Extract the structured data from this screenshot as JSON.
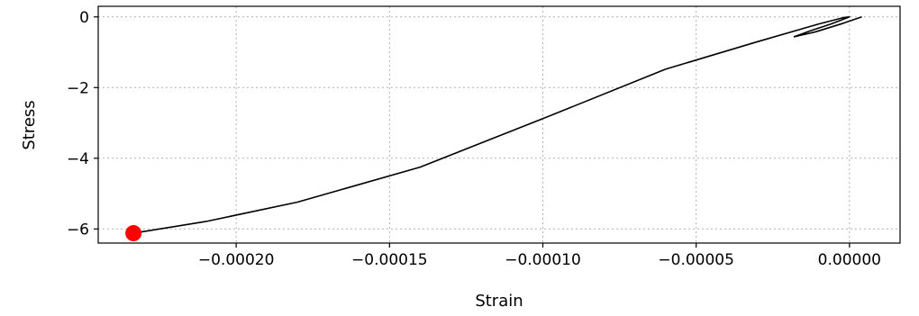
{
  "chart_data": {
    "type": "line",
    "title": "",
    "xlabel": "Strain",
    "ylabel": "Stress",
    "xlim": [
      -0.000245,
      1.65e-05
    ],
    "ylim": [
      -6.4,
      0.3
    ],
    "grid": true,
    "x_ticks": [
      -0.0002,
      -0.00015,
      -0.0001,
      -5e-05,
      0.0
    ],
    "x_tick_labels": [
      "−0.00020",
      "−0.00015",
      "−0.00010",
      "−0.00005",
      "0.00000"
    ],
    "y_ticks": [
      0,
      -2,
      -4,
      -6
    ],
    "y_tick_labels": [
      "0",
      "−2",
      "−4",
      "−6"
    ],
    "series": [
      {
        "color": "#000000",
        "x": [
          4e-06,
          -2e-06,
          -1.1e-05,
          -1.8e-05,
          -1.3e-05,
          -6e-06,
          0.0,
          -2e-06,
          -1e-05,
          -3e-05,
          -6e-05,
          -0.0001,
          -0.00014,
          -0.00018,
          -0.00021,
          -0.000232
        ],
        "y": [
          0.0,
          -0.18,
          -0.42,
          -0.56,
          -0.4,
          -0.2,
          0.0,
          -0.02,
          -0.2,
          -0.7,
          -1.48,
          -2.88,
          -4.25,
          -5.24,
          -5.79,
          -6.1
        ]
      }
    ],
    "marker": {
      "x": -0.0002335,
      "y": -6.12,
      "color": "#ff0000"
    }
  }
}
